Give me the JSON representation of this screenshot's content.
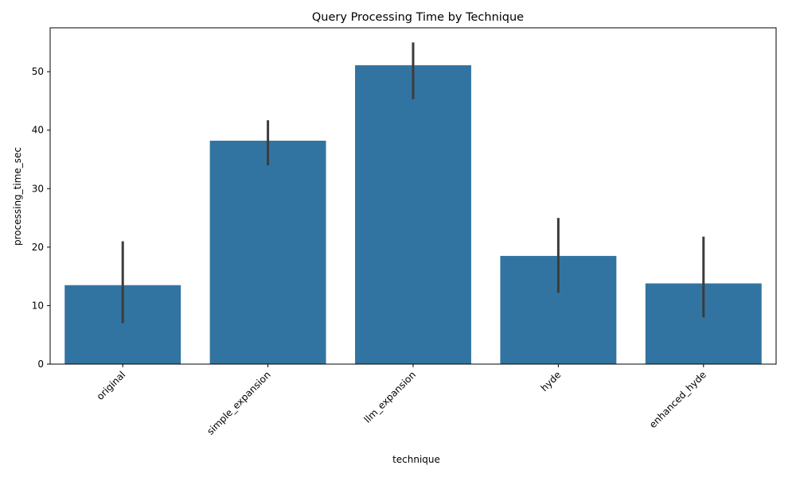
{
  "chart_data": {
    "type": "bar",
    "title": "Query Processing Time by Technique",
    "xlabel": "technique",
    "ylabel": "processing_time_sec",
    "categories": [
      "original",
      "simple_expansion",
      "llm_expansion",
      "hyde",
      "enhanced_hyde"
    ],
    "values": [
      13.5,
      38.2,
      51.1,
      18.5,
      13.8
    ],
    "error_low": [
      7.0,
      34.0,
      45.3,
      12.2,
      8.0
    ],
    "error_high": [
      21.0,
      41.7,
      55.0,
      25.0,
      21.8
    ],
    "ylim": [
      0,
      57.5
    ],
    "yticks": [
      0,
      10,
      20,
      30,
      40,
      50
    ],
    "x_tick_rotation": 45,
    "grid": false,
    "bar_color": "#3274a1",
    "error_color": "#3c3c3c"
  }
}
